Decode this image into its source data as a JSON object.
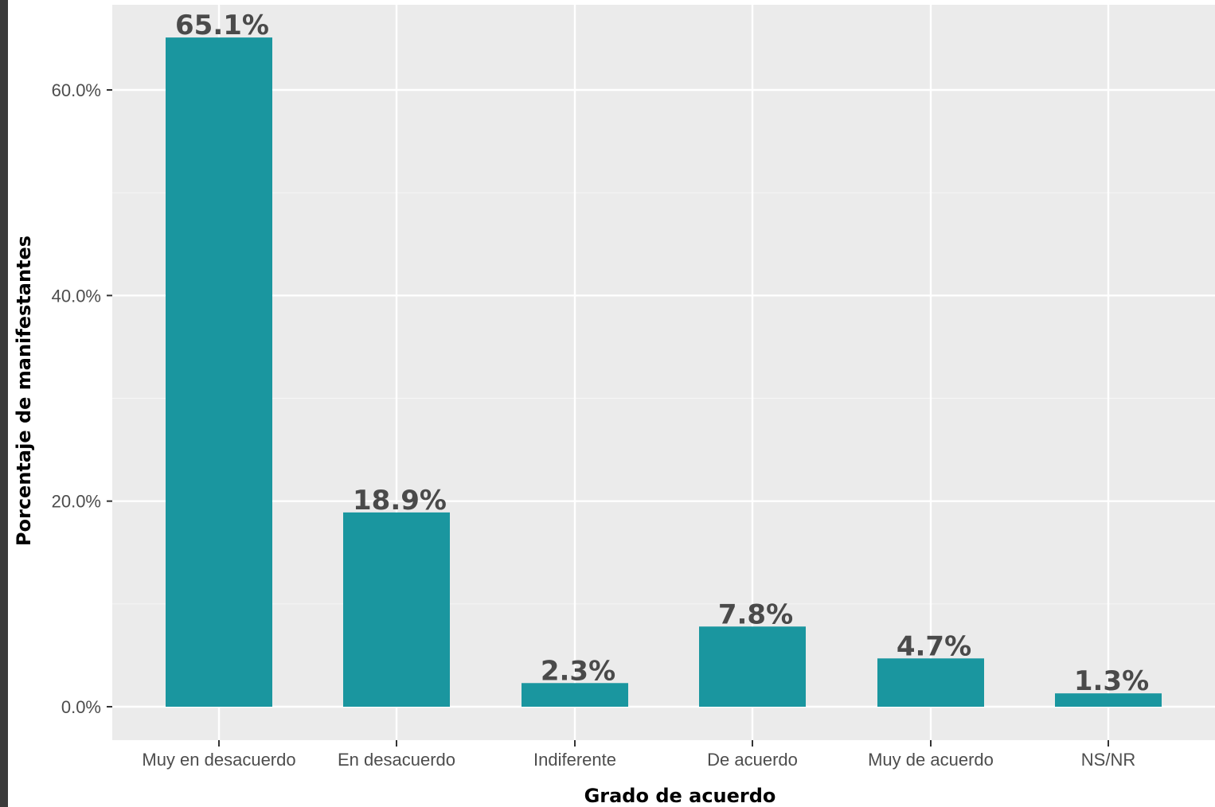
{
  "chart_data": {
    "type": "bar",
    "categories": [
      "Muy en desacuerdo",
      "En desacuerdo",
      "Indiferente",
      "De acuerdo",
      "Muy de acuerdo",
      "NS/NR"
    ],
    "values": [
      65.1,
      18.9,
      2.3,
      7.8,
      4.7,
      1.3
    ],
    "data_labels": [
      "65.1%",
      "18.9%",
      "2.3%",
      "7.8%",
      "4.7%",
      "1.3%"
    ],
    "xlabel": "Grado de acuerdo",
    "ylabel": "Porcentaje de manifestantes",
    "yticks": [
      0,
      20,
      40,
      60
    ],
    "ytick_labels": [
      "0.0%",
      "20.0%",
      "40.0%",
      "60.0%"
    ],
    "ylim": [
      -3.3,
      68.4
    ],
    "grid": true,
    "bar_color": "#1a969f",
    "panel_color": "#ebebeb"
  }
}
